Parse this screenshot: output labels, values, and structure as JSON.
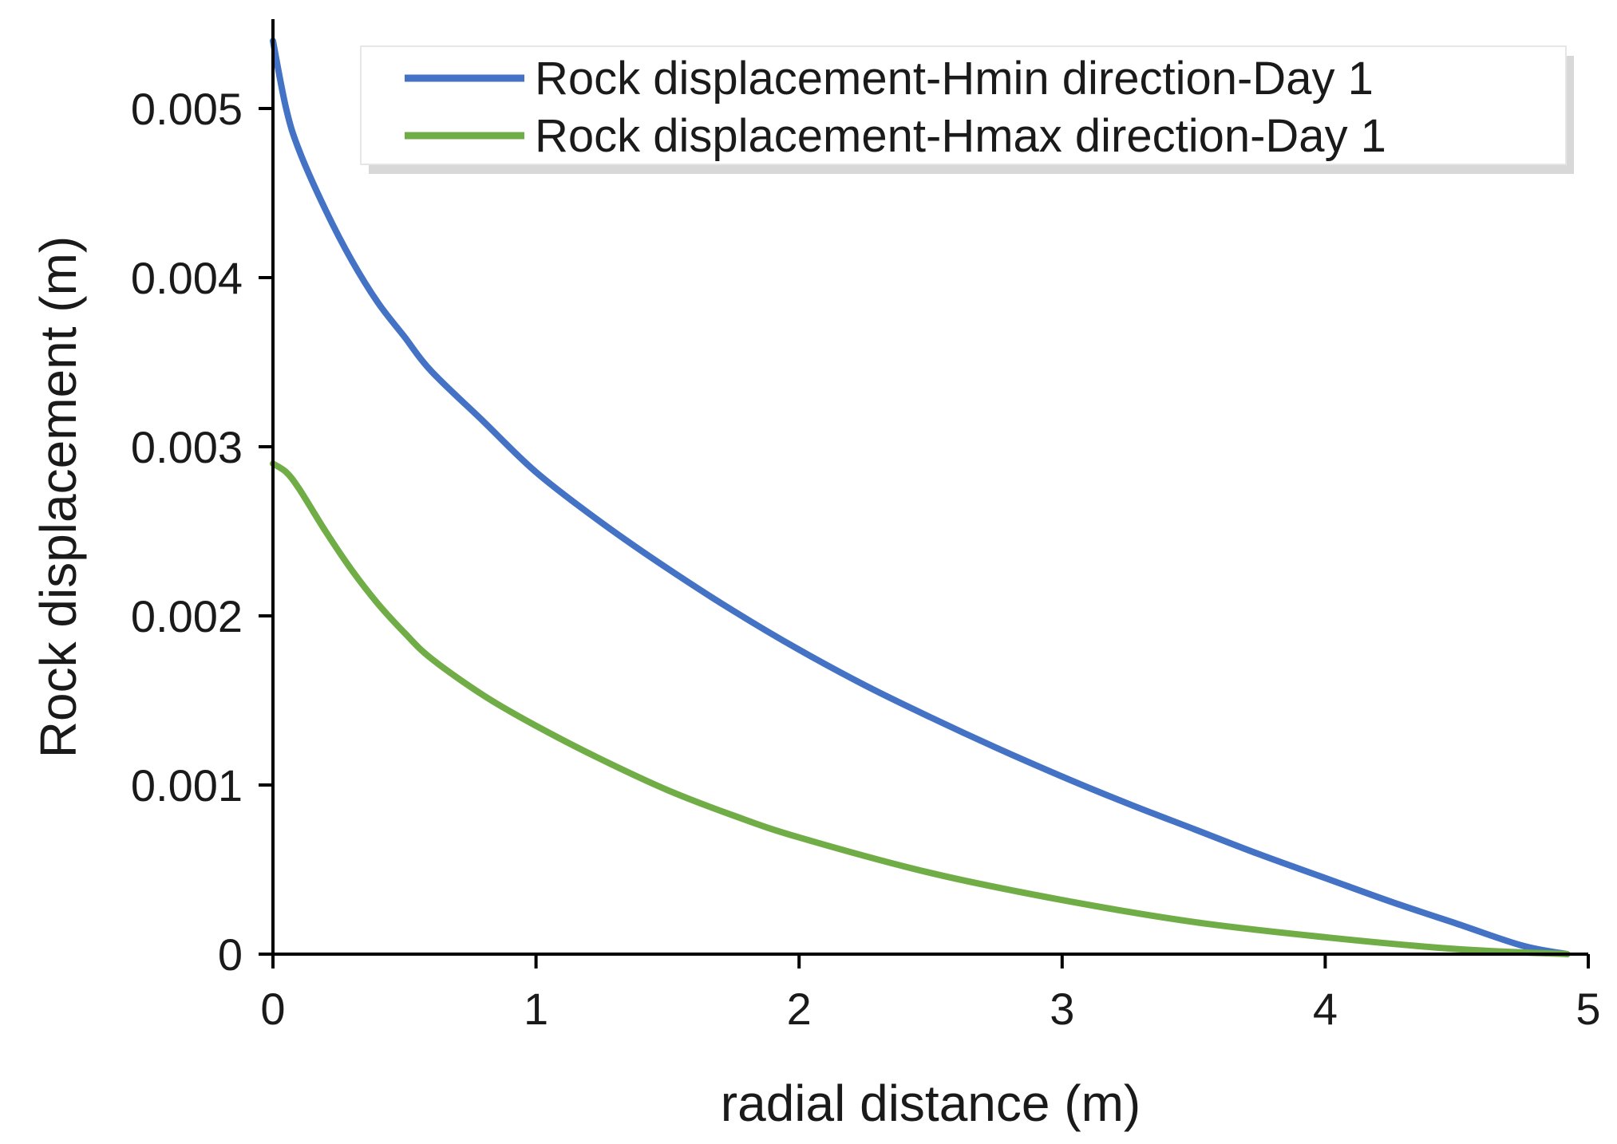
{
  "chart_data": {
    "type": "line",
    "title": "",
    "xlabel": "radial distance (m)",
    "ylabel": "Rock displacement (m)",
    "xlim": [
      0,
      5
    ],
    "ylim": [
      0,
      0.0055
    ],
    "x_ticks": [
      "0",
      "1",
      "2",
      "3",
      "4",
      "5"
    ],
    "y_ticks": [
      "0",
      "0.001",
      "0.002",
      "0.003",
      "0.004",
      "0.005"
    ],
    "grid": false,
    "legend_position": "top-right",
    "series": [
      {
        "name": "Rock displacement-Hmin direction-Day 1",
        "color": "#4472C4",
        "x": [
          0,
          0.05,
          0.1,
          0.2,
          0.3,
          0.4,
          0.5,
          0.6,
          0.8,
          1.0,
          1.25,
          1.5,
          1.75,
          2.0,
          2.25,
          2.5,
          2.75,
          3.0,
          3.25,
          3.5,
          3.75,
          4.0,
          4.25,
          4.5,
          4.75,
          4.92
        ],
        "y": [
          0.0054,
          0.005,
          0.00475,
          0.0044,
          0.0041,
          0.00385,
          0.00365,
          0.00345,
          0.00315,
          0.00285,
          0.00255,
          0.00228,
          0.00203,
          0.0018,
          0.00159,
          0.0014,
          0.00122,
          0.00105,
          0.00089,
          0.00074,
          0.00059,
          0.00045,
          0.00031,
          0.00018,
          5e-05,
          0.0
        ]
      },
      {
        "name": "Rock displacement-Hmax direction-Day 1",
        "color": "#70AD47",
        "x": [
          0,
          0.05,
          0.1,
          0.2,
          0.3,
          0.4,
          0.5,
          0.6,
          0.8,
          1.0,
          1.25,
          1.5,
          1.75,
          2.0,
          2.5,
          3.0,
          3.5,
          4.0,
          4.5,
          4.92
        ],
        "y": [
          0.0029,
          0.00285,
          0.00275,
          0.0025,
          0.00227,
          0.00207,
          0.0019,
          0.00175,
          0.00153,
          0.00135,
          0.00115,
          0.00097,
          0.00082,
          0.00069,
          0.00048,
          0.00032,
          0.00019,
          0.0001,
          3e-05,
          0.0
        ]
      }
    ]
  }
}
